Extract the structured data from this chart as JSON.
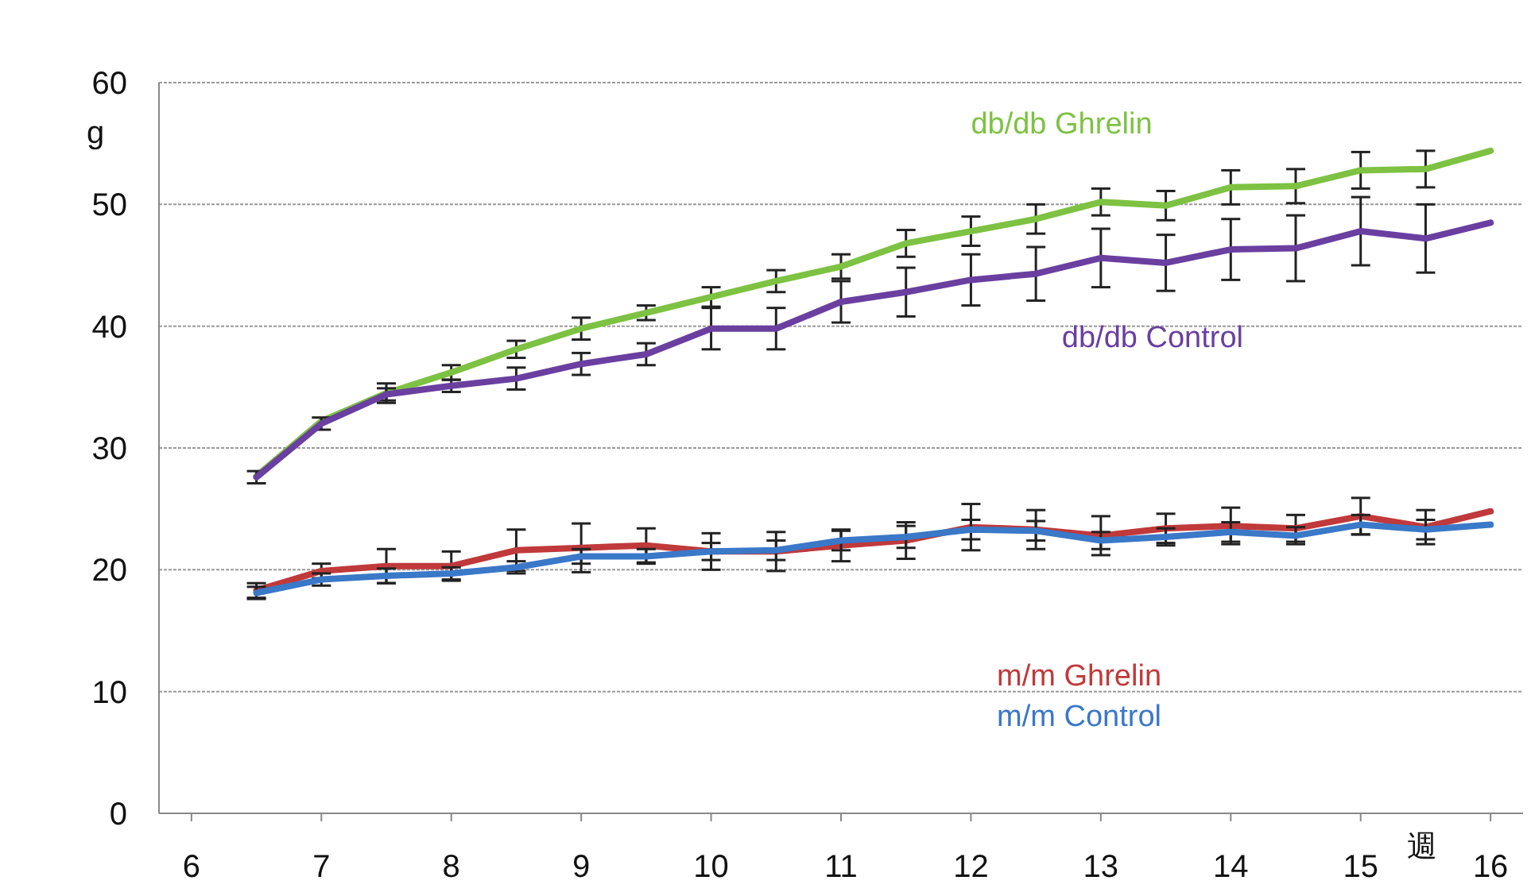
{
  "chart_data": {
    "type": "line",
    "xlabel": "週",
    "ylabel": "g",
    "x": [
      6.5,
      7,
      7.5,
      8,
      8.5,
      9,
      9.5,
      10,
      10.5,
      11,
      11.5,
      12,
      12.5,
      13,
      13.5,
      14,
      14.5,
      15,
      15.5,
      16
    ],
    "series": [
      {
        "name": "db/db Ghrelin",
        "color": "#7dc242",
        "values": [
          27.7,
          32.2,
          34.5,
          36.2,
          38.1,
          39.8,
          41.1,
          42.4,
          43.7,
          44.9,
          46.8,
          47.8,
          48.8,
          50.2,
          49.9,
          51.4,
          51.5,
          52.8,
          52.9,
          54.4
        ],
        "errors": [
          null,
          null,
          0.8,
          0.6,
          0.7,
          0.9,
          0.6,
          0.8,
          0.9,
          1.0,
          1.1,
          1.2,
          1.2,
          1.1,
          1.2,
          1.4,
          1.4,
          1.5,
          1.5,
          null
        ]
      },
      {
        "name": "db/db Control",
        "color": "#6a3fa0",
        "values": [
          27.6,
          32.0,
          34.4,
          35.1,
          35.7,
          36.9,
          37.7,
          39.8,
          39.8,
          42.0,
          42.8,
          43.8,
          44.3,
          45.6,
          45.2,
          46.3,
          46.4,
          47.8,
          47.2,
          48.5
        ],
        "errors": [
          0.5,
          0.5,
          0.5,
          0.5,
          0.9,
          0.9,
          0.9,
          1.7,
          1.7,
          1.7,
          2.0,
          2.1,
          2.2,
          2.4,
          2.3,
          2.5,
          2.7,
          2.8,
          2.8,
          null
        ]
      },
      {
        "name": "m/m Ghrelin",
        "color": "#c0393b",
        "values": [
          18.3,
          19.9,
          20.3,
          20.3,
          21.6,
          21.8,
          22.0,
          21.5,
          21.5,
          22.0,
          22.4,
          23.5,
          23.3,
          22.8,
          23.4,
          23.6,
          23.4,
          24.4,
          23.5,
          24.8
        ],
        "errors": [
          0.6,
          0.6,
          1.4,
          1.2,
          1.7,
          2.0,
          1.4,
          1.5,
          1.6,
          1.3,
          1.5,
          1.9,
          1.6,
          1.6,
          1.2,
          1.5,
          1.1,
          1.5,
          1.4,
          null
        ]
      },
      {
        "name": "m/m Control",
        "color": "#3a78c8",
        "values": [
          18.1,
          19.2,
          19.5,
          19.7,
          20.2,
          21.1,
          21.1,
          21.5,
          21.6,
          22.4,
          22.7,
          23.3,
          23.2,
          22.4,
          22.7,
          23.1,
          22.8,
          23.7,
          23.3,
          23.7
        ],
        "errors": [
          0.5,
          0.5,
          0.6,
          0.5,
          0.5,
          0.6,
          0.6,
          0.7,
          0.8,
          0.8,
          0.9,
          0.8,
          0.8,
          0.7,
          0.7,
          0.8,
          0.7,
          0.8,
          0.8,
          null
        ]
      }
    ],
    "xlim": [
      5.75,
      16.25
    ],
    "xticks": [
      6,
      7,
      8,
      9,
      10,
      11,
      12,
      13,
      14,
      15,
      16
    ],
    "ylim": [
      0,
      60
    ],
    "yticks": [
      0,
      10,
      20,
      30,
      40,
      50,
      60
    ],
    "grid": "y",
    "line_style": "solid"
  }
}
